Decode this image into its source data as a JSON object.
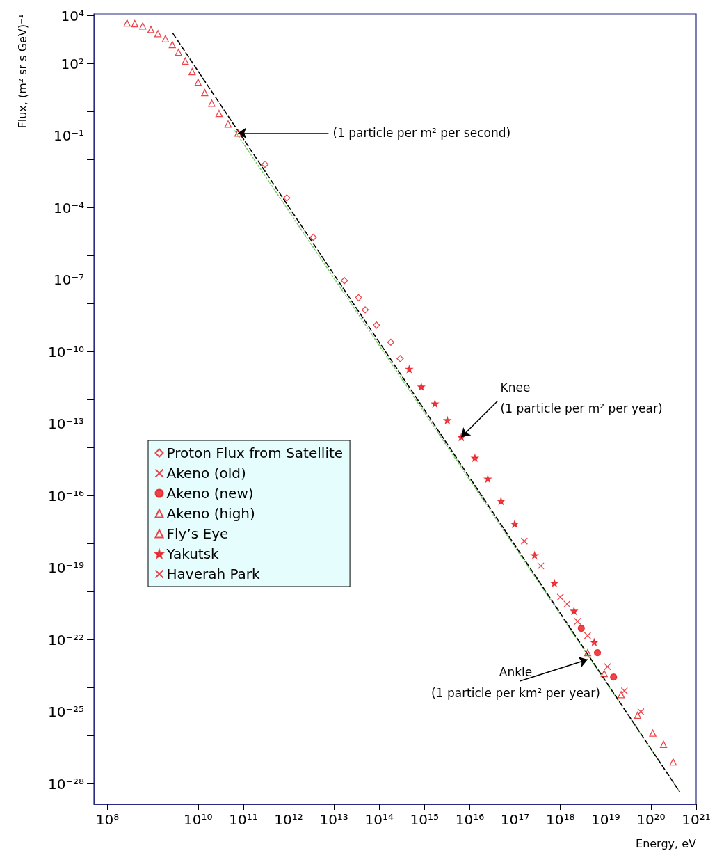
{
  "chart_data": {
    "type": "scatter",
    "xlabel": "Energy, eV",
    "ylabel": "Flux, (m² sr s GeV)⁻¹",
    "log": "xy",
    "legend": "left",
    "xlim": [
      50000000.0,
      1e+21
    ],
    "ylim": [
      1.4e-29,
      12000.0
    ],
    "xticks": [
      {
        "value": 100000000.0,
        "label": "10⁸"
      },
      {
        "value": 10000000000.0,
        "label": "10¹⁰"
      },
      {
        "value": 100000000000.0,
        "label": "10¹¹"
      },
      {
        "value": 1000000000000.0,
        "label": "10¹²"
      },
      {
        "value": 10000000000000.0,
        "label": "10¹³"
      },
      {
        "value": 100000000000000.0,
        "label": "10¹⁴"
      },
      {
        "value": 1000000000000000.0,
        "label": "10¹⁵"
      },
      {
        "value": 1e+16,
        "label": "10¹⁶"
      },
      {
        "value": 1e+17,
        "label": "10¹⁷"
      },
      {
        "value": 1e+18,
        "label": "10¹⁸"
      },
      {
        "value": 1e+19,
        "label": "10¹⁹"
      },
      {
        "value": 1e+20,
        "label": "10²⁰"
      },
      {
        "value": 1e+21,
        "label": "10²¹"
      }
    ],
    "yticks": [
      {
        "value": 10000.0,
        "label": "10⁴"
      },
      {
        "value": 1000.0,
        "label": null
      },
      {
        "value": 100.0,
        "label": "10²"
      },
      {
        "value": 10.0,
        "label": null
      },
      {
        "value": 1,
        "label": null
      },
      {
        "value": 0.1,
        "label": "10⁻¹"
      },
      {
        "value": 0.01,
        "label": null
      },
      {
        "value": 0.001,
        "label": null
      },
      {
        "value": 0.0001,
        "label": "10⁻⁴"
      },
      {
        "value": 1e-05,
        "label": null
      },
      {
        "value": 1e-06,
        "label": null
      },
      {
        "value": 1e-07,
        "label": "10⁻⁷"
      },
      {
        "value": 1e-08,
        "label": null
      },
      {
        "value": 1e-09,
        "label": null
      },
      {
        "value": 1e-10,
        "label": "10⁻¹⁰"
      },
      {
        "value": 1e-11,
        "label": null
      },
      {
        "value": 1e-12,
        "label": null
      },
      {
        "value": 1e-13,
        "label": "10⁻¹³"
      },
      {
        "value": 1e-14,
        "label": null
      },
      {
        "value": 1e-15,
        "label": null
      },
      {
        "value": 1e-16,
        "label": "10⁻¹⁶"
      },
      {
        "value": 1e-17,
        "label": null
      },
      {
        "value": 1e-18,
        "label": null
      },
      {
        "value": 1e-19,
        "label": "10⁻¹⁹"
      },
      {
        "value": 1e-20,
        "label": null
      },
      {
        "value": 1e-21,
        "label": null
      },
      {
        "value": 1e-22,
        "label": "10⁻²²"
      },
      {
        "value": 1e-23,
        "label": null
      },
      {
        "value": 1e-24,
        "label": null
      },
      {
        "value": 1e-25,
        "label": "10⁻²⁵"
      },
      {
        "value": 1e-26,
        "label": null
      },
      {
        "value": 1e-27,
        "label": null
      },
      {
        "value": 1e-28,
        "label": "10⁻²⁸"
      }
    ],
    "series": [
      {
        "name": "Proton Flux from Satellite",
        "marker": "diamond",
        "color": "#e8151b",
        "x": [
          300000000000.0,
          910000000000.0,
          3500000000000.0,
          17000000000000.0,
          35000000000000.0,
          49000000000000.0,
          87000000000000.0,
          180000000000000.0,
          290000000000000.0
        ],
        "values": [
          0.0065,
          0.00026,
          5.9e-06,
          9.3e-08,
          1.8e-08,
          5.6e-09,
          1.3e-09,
          2.5e-10,
          5.2e-11
        ]
      },
      {
        "name": "Akeno (old)",
        "marker": "cross",
        "color": "#e8151b",
        "x": [
          1.6e+17,
          3.7e+17,
          1e+18,
          2.4e+18
        ],
        "values": [
          1.3e-18,
          1.2e-19,
          6e-21,
          5.9e-22
        ]
      },
      {
        "name": "Akeno (new)",
        "marker": "circle",
        "color": "#e8151b",
        "x": [
          2.9e+18,
          6.6e+18,
          1.5e+19
        ],
        "values": [
          3e-22,
          2.9e-23,
          2.8e-24
        ]
      },
      {
        "name": "Akeno (high)",
        "marker": "triangle",
        "color": "#e8151b",
        "x": [
          270000000.0,
          400000000.0,
          600000000.0,
          910000000.0,
          1300000000.0,
          1900000000.0,
          2700000000.0,
          3700000000.0,
          5200000000.0,
          7400000000.0,
          10000000000.0,
          14000000000.0,
          20000000000.0,
          29000000000.0,
          46000000000.0,
          76000000000.0,
          1.1e+20,
          1.9e+20
        ],
        "values": [
          5000.0,
          4700.0,
          3800.0,
          2700.0,
          1800.0,
          1100.0,
          630.0,
          300.0,
          130.0,
          47,
          17,
          6.3,
          2.3,
          0.85,
          0.31,
          0.13,
          1.3e-26,
          4.4e-27
        ]
      },
      {
        "name": "Fly’s Eye",
        "marker": "triangle",
        "color": "#e8151b",
        "x": [
          4e+18,
          9.3e+18,
          2.2e+19,
          5.1e+19,
          3.1e+20
        ],
        "values": [
          2.9e-23,
          3.9e-24,
          5.2e-25,
          7.2e-26,
          8.1e-28
        ]
      },
      {
        "name": "Yakutsk",
        "marker": "star",
        "color": "#e8151b",
        "x": [
          460000000000000.0,
          850000000000000.0,
          1700000000000000.0,
          3200000000000000.0,
          6500000000000000.0,
          1.3e+16,
          2.5e+16,
          4.9e+16,
          9.8e+16,
          2.7e+17,
          7.4e+17,
          2e+18,
          5.6e+18
        ],
        "values": [
          1.9e-11,
          3.5e-12,
          6.9e-13,
          1.4e-13,
          2.8e-14,
          3.8e-15,
          5.1e-16,
          6e-17,
          6.8e-18,
          3.3e-19,
          2.3e-20,
          1.6e-21,
          7.9e-23
        ]
      },
      {
        "name": "Haverah Park",
        "marker": "cross",
        "color": "#e8151b",
        "x": [
          1.4e+18,
          4e+18,
          1.1e+19,
          2.6e+19,
          6e+19
        ],
        "values": [
          3.1e-21,
          1.5e-22,
          7.6e-24,
          7.4e-25,
          1e-25
        ]
      },
      {
        "type": "line",
        "marker": "none",
        "line_style": "dotted",
        "color": "#7acc6a",
        "x": [
          65000000000.0,
          4.3e+20
        ],
        "values": [
          0.16,
          4.7e-29
        ]
      },
      {
        "type": "line",
        "marker": "none",
        "line_style": "dashed",
        "color": "#000000",
        "x": [
          2800000000.0,
          4.3e+20
        ],
        "values": [
          1800.0,
          4.7e-29
        ]
      }
    ],
    "annotations": [
      {
        "text": "(1 particle per m² per second)",
        "x": 76000000000.0,
        "y": 0.13
      },
      {
        "text": "Knee\n(1 particle per m² per year)",
        "x": 6500000000000000.0,
        "y": 2.8e-14
      },
      {
        "text": "Ankle\n(1 particle per km² per year)",
        "x": 4e+18,
        "y": 1.5e-23
      }
    ]
  }
}
